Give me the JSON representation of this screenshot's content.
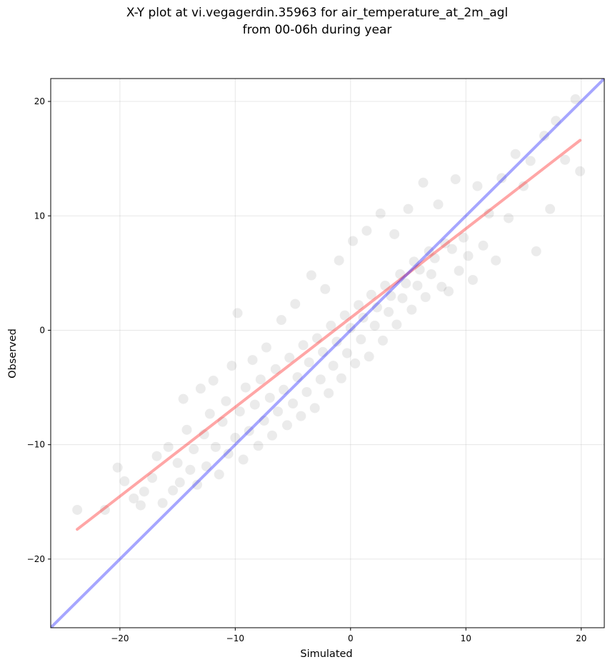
{
  "chart_data": {
    "type": "scatter",
    "title_lines": [
      "X-Y plot at vi.vegagerdin.35963 for air_temperature_at_2m_agl",
      "from 00-06h during year"
    ],
    "xlabel": "Simulated",
    "ylabel": "Observed",
    "xlim": [
      -26,
      22
    ],
    "ylim": [
      -26,
      22
    ],
    "xticks": [
      -20,
      -10,
      0,
      10,
      20
    ],
    "yticks": [
      -20,
      -10,
      0,
      10,
      20
    ],
    "tick_labels": {
      "x": [
        "−20",
        "−10",
        "0",
        "10",
        "20"
      ],
      "y": [
        "−20",
        "−10",
        "0",
        "10",
        "20"
      ]
    },
    "grid": true,
    "point_color": "#000000",
    "point_alpha": 0.08,
    "series": [
      {
        "kind": "points",
        "points_xy": [
          [
            -23.7,
            -15.7
          ],
          [
            -21.3,
            -15.7
          ],
          [
            -20.2,
            -12.0
          ],
          [
            -19.6,
            -13.2
          ],
          [
            -18.8,
            -14.7
          ],
          [
            -18.2,
            -15.3
          ],
          [
            -17.9,
            -14.1
          ],
          [
            -17.2,
            -12.9
          ],
          [
            -16.8,
            -11.0
          ],
          [
            -16.3,
            -15.1
          ],
          [
            -15.8,
            -10.2
          ],
          [
            -15.4,
            -14.0
          ],
          [
            -15.0,
            -11.6
          ],
          [
            -14.8,
            -13.3
          ],
          [
            -14.5,
            -6.0
          ],
          [
            -14.2,
            -8.7
          ],
          [
            -13.9,
            -12.2
          ],
          [
            -13.6,
            -10.4
          ],
          [
            -13.3,
            -13.5
          ],
          [
            -13.0,
            -5.1
          ],
          [
            -12.7,
            -9.1
          ],
          [
            -12.5,
            -11.9
          ],
          [
            -12.2,
            -7.3
          ],
          [
            -11.9,
            -4.4
          ],
          [
            -11.7,
            -10.2
          ],
          [
            -11.4,
            -12.6
          ],
          [
            -11.1,
            -8.0
          ],
          [
            -10.8,
            -6.2
          ],
          [
            -10.6,
            -10.8
          ],
          [
            -10.3,
            -3.1
          ],
          [
            -10.0,
            -9.4
          ],
          [
            -9.8,
            1.5
          ],
          [
            -9.6,
            -7.1
          ],
          [
            -9.3,
            -11.3
          ],
          [
            -9.1,
            -5.0
          ],
          [
            -8.8,
            -8.8
          ],
          [
            -8.5,
            -2.6
          ],
          [
            -8.3,
            -6.5
          ],
          [
            -8.0,
            -10.1
          ],
          [
            -7.8,
            -4.3
          ],
          [
            -7.5,
            -7.9
          ],
          [
            -7.3,
            -1.5
          ],
          [
            -7.0,
            -5.9
          ],
          [
            -6.8,
            -9.2
          ],
          [
            -6.5,
            -3.4
          ],
          [
            -6.3,
            -7.1
          ],
          [
            -6.0,
            0.9
          ],
          [
            -5.8,
            -5.2
          ],
          [
            -5.5,
            -8.3
          ],
          [
            -5.3,
            -2.4
          ],
          [
            -5.0,
            -6.4
          ],
          [
            -4.8,
            2.3
          ],
          [
            -4.6,
            -4.1
          ],
          [
            -4.3,
            -7.5
          ],
          [
            -4.1,
            -1.3
          ],
          [
            -3.8,
            -5.4
          ],
          [
            -3.6,
            -2.8
          ],
          [
            -3.4,
            4.8
          ],
          [
            -3.1,
            -6.8
          ],
          [
            -2.9,
            -0.7
          ],
          [
            -2.6,
            -4.3
          ],
          [
            -2.4,
            -1.9
          ],
          [
            -2.2,
            3.6
          ],
          [
            -1.9,
            -5.5
          ],
          [
            -1.7,
            0.4
          ],
          [
            -1.5,
            -3.1
          ],
          [
            -1.2,
            -1.0
          ],
          [
            -1.0,
            6.1
          ],
          [
            -0.8,
            -4.2
          ],
          [
            -0.5,
            1.3
          ],
          [
            -0.3,
            -2.0
          ],
          [
            0.0,
            0.2
          ],
          [
            0.2,
            7.8
          ],
          [
            0.4,
            -2.9
          ],
          [
            0.7,
            2.2
          ],
          [
            0.9,
            -0.8
          ],
          [
            1.1,
            1.1
          ],
          [
            1.4,
            8.7
          ],
          [
            1.6,
            -2.3
          ],
          [
            1.8,
            3.1
          ],
          [
            2.1,
            0.4
          ],
          [
            2.3,
            2.0
          ],
          [
            2.6,
            10.2
          ],
          [
            2.8,
            -0.9
          ],
          [
            3.0,
            3.9
          ],
          [
            3.3,
            1.6
          ],
          [
            3.5,
            3.0
          ],
          [
            3.8,
            8.4
          ],
          [
            4.0,
            0.5
          ],
          [
            4.3,
            4.9
          ],
          [
            4.5,
            2.8
          ],
          [
            4.8,
            4.1
          ],
          [
            5.0,
            10.6
          ],
          [
            5.3,
            1.8
          ],
          [
            5.5,
            6.0
          ],
          [
            5.8,
            3.9
          ],
          [
            6.0,
            5.3
          ],
          [
            6.3,
            12.9
          ],
          [
            6.5,
            2.9
          ],
          [
            6.8,
            6.9
          ],
          [
            7.0,
            4.9
          ],
          [
            7.3,
            6.3
          ],
          [
            7.6,
            11.0
          ],
          [
            7.9,
            3.8
          ],
          [
            8.2,
            7.6
          ],
          [
            8.5,
            3.4
          ],
          [
            8.8,
            7.1
          ],
          [
            9.1,
            13.2
          ],
          [
            9.4,
            5.2
          ],
          [
            9.8,
            8.1
          ],
          [
            10.2,
            6.5
          ],
          [
            10.6,
            4.4
          ],
          [
            11.0,
            12.6
          ],
          [
            11.5,
            7.4
          ],
          [
            12.0,
            10.2
          ],
          [
            12.6,
            6.1
          ],
          [
            13.1,
            13.3
          ],
          [
            13.7,
            9.8
          ],
          [
            14.3,
            15.4
          ],
          [
            15.0,
            12.6
          ],
          [
            15.6,
            14.8
          ],
          [
            16.1,
            6.9
          ],
          [
            16.8,
            17.0
          ],
          [
            17.3,
            10.6
          ],
          [
            17.8,
            18.3
          ],
          [
            18.6,
            14.9
          ],
          [
            19.5,
            20.2
          ],
          [
            19.9,
            13.9
          ]
        ]
      },
      {
        "kind": "line",
        "name": "",
        "color": "#ff0000",
        "alpha": 0.35,
        "points_xy": [
          [
            -23.7,
            -17.4
          ],
          [
            19.9,
            16.6
          ]
        ]
      },
      {
        "kind": "line",
        "name": "",
        "color": "#0000ff",
        "alpha": 0.35,
        "points_xy": [
          [
            -26,
            -26
          ],
          [
            22,
            22
          ]
        ]
      }
    ]
  }
}
